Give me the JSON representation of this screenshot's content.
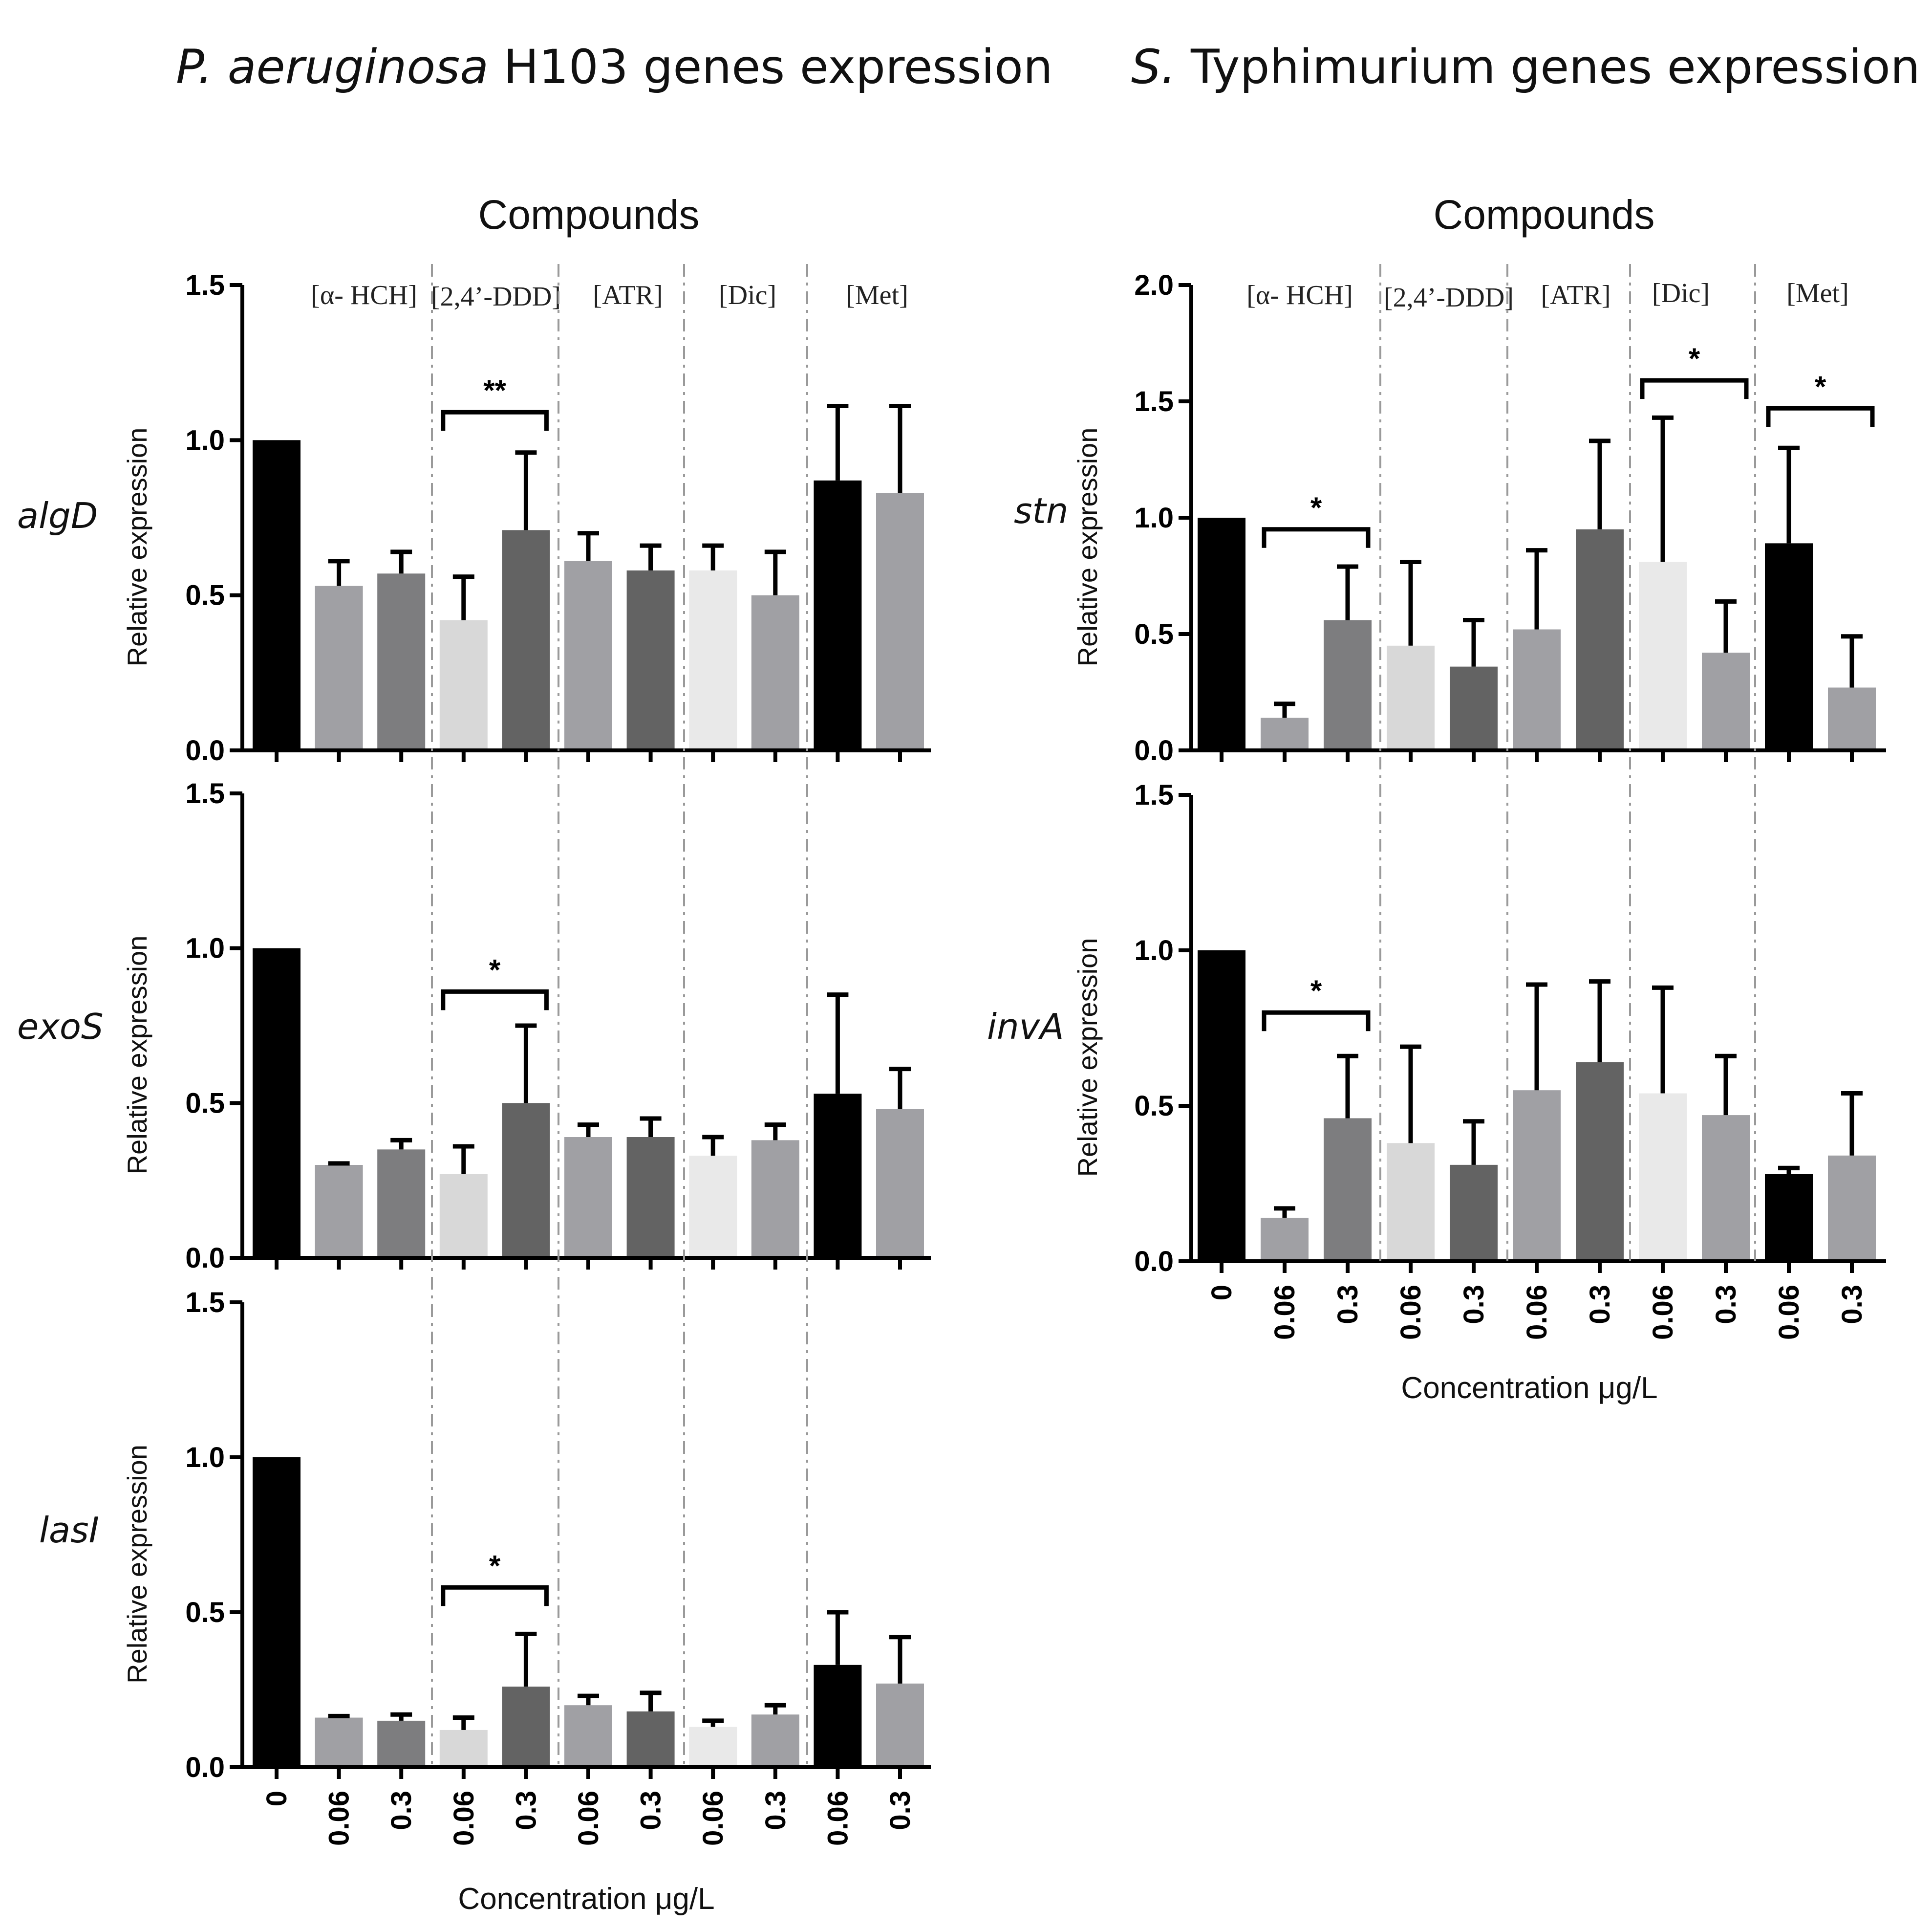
{
  "left_title": {
    "italic": "P. aeruginosa",
    "rest": " H103 genes expression"
  },
  "right_title": {
    "italic": "S.",
    "rest": " Typhimurium genes expression"
  },
  "compounds_label": "Compounds",
  "compounds": [
    "[α- HCH]",
    "[2,4’-DDD]",
    "[ATR]",
    "[Dic]",
    "[Met]"
  ],
  "x_axis_label": "Concentration μg/L",
  "y_axis_label": "Relative expression",
  "categories": [
    "0",
    "0.06",
    "0.3",
    "0.06",
    "0.3",
    "0.06",
    "0.3",
    "0.06",
    "0.3",
    "0.06",
    "0.3"
  ],
  "colors": {
    "p_aeruginosa": [
      "#000000",
      "#a0a0a4",
      "#7d7d7f",
      "#d8d8d8",
      "#636363",
      "#a0a0a4",
      "#636363",
      "#e9e9e9",
      "#a0a0a4",
      "#000000",
      "#a0a0a4"
    ],
    "s_typhimurium": [
      "#000000",
      "#a0a0a4",
      "#7d7d7f",
      "#d8d8d8",
      "#636363",
      "#a0a0a4",
      "#636363",
      "#e9e9e9",
      "#a0a0a4",
      "#000000",
      "#a0a0a4"
    ]
  },
  "chart_data": [
    {
      "type": "bar",
      "panel": "left",
      "gene": "algD",
      "ylim": [
        0,
        1.5
      ],
      "yticks": [
        "0.0",
        "0.5",
        "1.0",
        "1.5"
      ],
      "values": [
        1.0,
        0.53,
        0.57,
        0.42,
        0.71,
        0.61,
        0.58,
        0.58,
        0.5,
        0.87,
        0.83
      ],
      "errors": [
        0,
        0.08,
        0.07,
        0.14,
        0.25,
        0.09,
        0.08,
        0.08,
        0.14,
        0.24,
        0.28
      ],
      "significance": [
        {
          "from": 3,
          "to": 4,
          "label": "**",
          "y": 1.09
        }
      ],
      "show_x_labels": false
    },
    {
      "type": "bar",
      "panel": "left",
      "gene": "exoS",
      "ylim": [
        0,
        1.5
      ],
      "yticks": [
        "0.0",
        "0.5",
        "1.0",
        "1.5"
      ],
      "values": [
        1.0,
        0.3,
        0.35,
        0.27,
        0.5,
        0.39,
        0.39,
        0.33,
        0.38,
        0.53,
        0.48
      ],
      "errors": [
        0,
        0.005,
        0.03,
        0.09,
        0.25,
        0.04,
        0.06,
        0.06,
        0.05,
        0.32,
        0.13
      ],
      "significance": [
        {
          "from": 3,
          "to": 4,
          "label": "*",
          "y": 0.86
        }
      ],
      "show_x_labels": false
    },
    {
      "type": "bar",
      "panel": "left",
      "gene": "lasI",
      "ylim": [
        0,
        1.5
      ],
      "yticks": [
        "0.0",
        "0.5",
        "1.0",
        "1.5"
      ],
      "values": [
        1.0,
        0.16,
        0.15,
        0.12,
        0.26,
        0.2,
        0.18,
        0.13,
        0.17,
        0.33,
        0.27
      ],
      "errors": [
        0,
        0.005,
        0.02,
        0.04,
        0.17,
        0.03,
        0.06,
        0.02,
        0.03,
        0.17,
        0.15
      ],
      "significance": [
        {
          "from": 3,
          "to": 4,
          "label": "*",
          "y": 0.58
        }
      ],
      "show_x_labels": true
    },
    {
      "type": "bar",
      "panel": "right",
      "gene": "stn",
      "ylim": [
        0,
        2.0
      ],
      "yticks": [
        "0.0",
        "0.5",
        "1.0",
        "1.5",
        "2.0"
      ],
      "values": [
        1.0,
        0.14,
        0.56,
        0.45,
        0.36,
        0.52,
        0.95,
        0.81,
        0.42,
        0.89,
        0.27
      ],
      "errors": [
        0,
        0.06,
        0.23,
        0.36,
        0.2,
        0.34,
        0.38,
        0.62,
        0.22,
        0.41,
        0.22
      ],
      "significance": [
        {
          "from": 1,
          "to": 2,
          "label": "*",
          "y": 0.95
        },
        {
          "from": 7,
          "to": 8,
          "label": "*",
          "y": 1.59
        },
        {
          "from": 9,
          "to": 10,
          "label": "*",
          "y": 1.47
        }
      ],
      "show_x_labels": false
    },
    {
      "type": "bar",
      "panel": "right",
      "gene": "invA",
      "ylim": [
        0,
        1.5
      ],
      "yticks": [
        "0.0",
        "0.5",
        "1.0",
        "1.5"
      ],
      "values": [
        1.0,
        0.14,
        0.46,
        0.38,
        0.31,
        0.55,
        0.64,
        0.54,
        0.47,
        0.28,
        0.34
      ],
      "errors": [
        0,
        0.03,
        0.2,
        0.31,
        0.14,
        0.34,
        0.26,
        0.34,
        0.19,
        0.02,
        0.2
      ],
      "significance": [
        {
          "from": 1,
          "to": 2,
          "label": "*",
          "y": 0.8
        }
      ],
      "show_x_labels": true
    }
  ]
}
